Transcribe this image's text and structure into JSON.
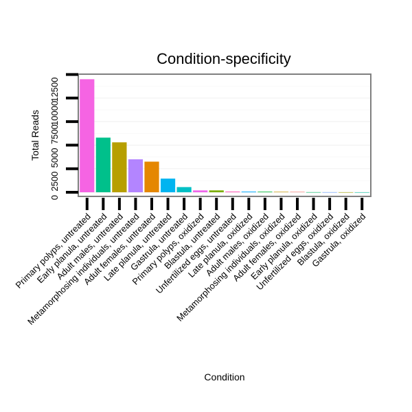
{
  "chart_data": {
    "type": "bar",
    "title": "Condition-specificity",
    "xlabel": "Condition",
    "ylabel": "Total Reads",
    "categories": [
      "Primary polyps, untreated",
      "Early planula, untreated",
      "Adult males, untreated",
      "Metamorphosing individuals, untreated",
      "Adult females, untreated",
      "Late planula, untreated",
      "Gastrula, untreated",
      "Primary polyps, oxidized",
      "Blastula, untreated",
      "Unfertilized eggs, untreated",
      "Late planula, oxidized",
      "Adult males, oxidized",
      "Metamorphosing individuals, oxidized",
      "Adult females, oxidized",
      "Early planula, oxidized",
      "Unfertilized eggs, oxidized",
      "Blastula, oxidized",
      "Gastrula, oxidized"
    ],
    "values": [
      12000,
      5800,
      5300,
      3500,
      3250,
      1450,
      550,
      200,
      200,
      80,
      70,
      60,
      50,
      45,
      10,
      8,
      5,
      3
    ],
    "colors": [
      "#F564E3",
      "#00C08B",
      "#B79F00",
      "#B385FF",
      "#E58700",
      "#00B4F0",
      "#00BFC4",
      "#EF67EB",
      "#7CAE00",
      "#FF62BC",
      "#00A9FF",
      "#00BA38",
      "#C99800",
      "#F8766D",
      "#00BE67",
      "#619CFF",
      "#A3A500",
      "#00C19F"
    ],
    "y_ticks": [
      0,
      2500,
      5000,
      7500,
      10000,
      12500
    ],
    "y_tick_labels": [
      "0",
      "2500",
      "5000",
      "7500",
      "10000",
      "12500"
    ],
    "ylim": [
      0,
      12500
    ],
    "grid": true
  }
}
